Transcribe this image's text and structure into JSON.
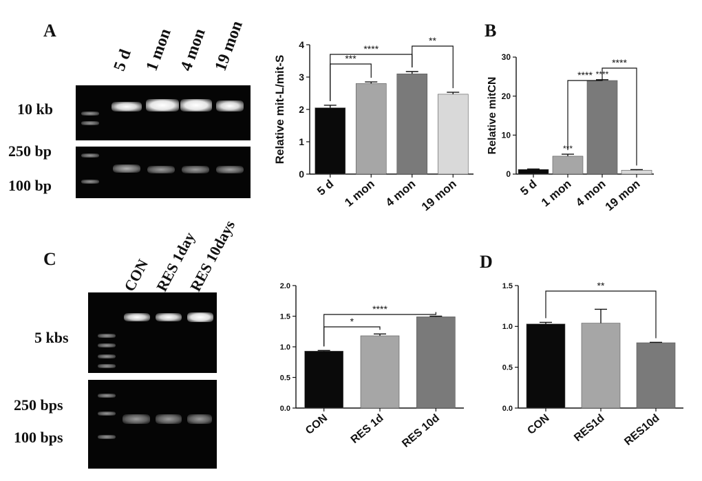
{
  "panels": {
    "a": "A",
    "b": "B",
    "c": "C",
    "d": "D"
  },
  "gel_a": {
    "lanes": [
      "5 d",
      "1 mon",
      "4 mon",
      "19 mon"
    ],
    "size_labels": [
      "10 kb",
      "250 bp",
      "100 bp"
    ]
  },
  "gel_c": {
    "lanes": [
      "CON",
      "RES 1day",
      "RES 10days"
    ],
    "size_labels": [
      "5 kbs",
      "250 bps",
      "100 bps"
    ]
  },
  "chart_data": [
    {
      "id": "chart-a",
      "type": "bar",
      "categories": [
        "5 d",
        "1 mon",
        "4 mon",
        "19 mon"
      ],
      "values": [
        2.05,
        2.8,
        3.1,
        2.47
      ],
      "errors": [
        0.08,
        0.05,
        0.07,
        0.06
      ],
      "colors": [
        "#0a0a0a",
        "#a6a6a6",
        "#7a7a7a",
        "#d9d9d9"
      ],
      "ylabel": "Relative mit-L/mit-S",
      "ylim": [
        0,
        4
      ],
      "yticks": [
        0,
        1,
        2,
        3,
        4
      ],
      "ytick_labels": [
        "0",
        "1",
        "2",
        "3",
        "4"
      ],
      "rotate_xticks": true,
      "significance": [
        {
          "from": 0,
          "to": 1,
          "label": "***"
        },
        {
          "from": 0,
          "to": 2,
          "label": "****"
        },
        {
          "from": 2,
          "to": 3,
          "label": "**"
        }
      ],
      "bar_annotations": []
    },
    {
      "id": "chart-b",
      "type": "bar",
      "categories": [
        "5 d",
        "1 mon",
        "4 mon",
        "19 mon"
      ],
      "values": [
        1.2,
        4.6,
        24.0,
        1.0
      ],
      "errors": [
        0.1,
        0.5,
        0.2,
        0.15
      ],
      "colors": [
        "#0a0a0a",
        "#a6a6a6",
        "#7a7a7a",
        "#d9d9d9"
      ],
      "ylabel": "Relative mitCN",
      "ylim": [
        0,
        30
      ],
      "yticks": [
        0,
        10,
        20,
        30
      ],
      "ytick_labels": [
        "0",
        "10",
        "20",
        "30"
      ],
      "rotate_xticks": true,
      "significance": [
        {
          "from": 1,
          "to": 2,
          "label": "****"
        },
        {
          "from": 2,
          "to": 3,
          "label": "****"
        }
      ],
      "bar_annotations": [
        {
          "index": 1,
          "label": "***"
        },
        {
          "index": 2,
          "label": "****"
        }
      ]
    },
    {
      "id": "chart-c",
      "type": "bar",
      "categories": [
        "CON",
        "RES 1d",
        "RES 10d"
      ],
      "values": [
        0.93,
        1.18,
        1.49
      ],
      "errors": [
        0.01,
        0.03,
        0.01
      ],
      "colors": [
        "#0a0a0a",
        "#a6a6a6",
        "#7a7a7a"
      ],
      "ylabel": "",
      "ylim": [
        0,
        2.0
      ],
      "yticks": [
        0,
        0.5,
        1.0,
        1.5,
        2.0
      ],
      "ytick_labels": [
        "0.0",
        "0.5",
        "1.0",
        "1.5",
        "2.0"
      ],
      "rotate_xticks": true,
      "significance": [
        {
          "from": 0,
          "to": 1,
          "label": "*"
        },
        {
          "from": 0,
          "to": 2,
          "label": "****"
        }
      ],
      "bar_annotations": []
    },
    {
      "id": "chart-d",
      "type": "bar",
      "categories": [
        "CON",
        "RES1d",
        "RES10d"
      ],
      "values": [
        1.03,
        1.04,
        0.8
      ],
      "errors": [
        0.02,
        0.17,
        0.005
      ],
      "colors": [
        "#0a0a0a",
        "#a6a6a6",
        "#7a7a7a"
      ],
      "ylabel": "",
      "ylim": [
        0,
        1.5
      ],
      "yticks": [
        0,
        0.5,
        1.0,
        1.5
      ],
      "ytick_labels": [
        "0.0",
        "0.5",
        "1.0",
        "1.5"
      ],
      "rotate_xticks": true,
      "significance": [
        {
          "from": 0,
          "to": 2,
          "label": "**"
        }
      ],
      "bar_annotations": []
    }
  ]
}
